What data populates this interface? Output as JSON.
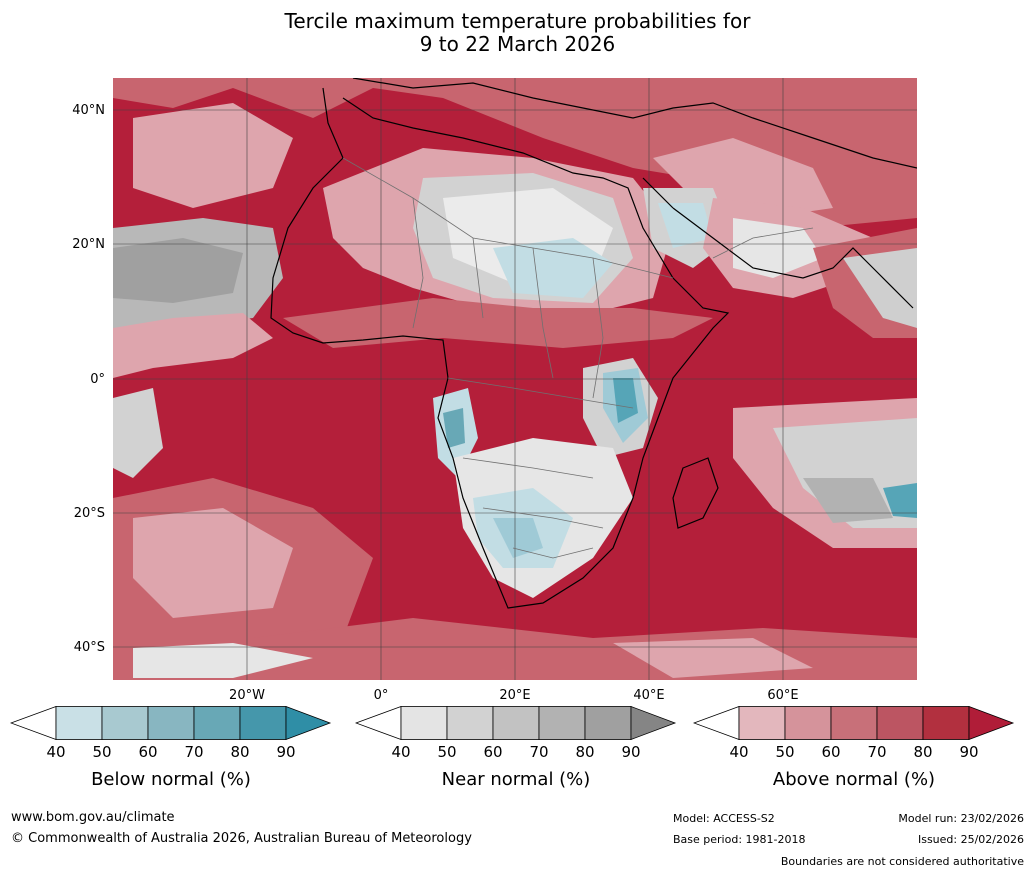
{
  "title_line1": "Tercile maximum temperature probabilities for",
  "title_line2": "9 to 22 March 2026",
  "lat_labels": [
    "40°N",
    "20°N",
    "0°",
    "20°S",
    "40°S"
  ],
  "lon_labels": [
    "20°W",
    "0°",
    "20°E",
    "40°E",
    "60°E"
  ],
  "colorbars": [
    {
      "label": "Below normal (%)",
      "ticks": [
        "40",
        "50",
        "60",
        "70",
        "80",
        "90"
      ],
      "colors": [
        "#ffffff",
        "#c9e0e6",
        "#a8c9d0",
        "#88b6c1",
        "#68a8b6",
        "#4597ab",
        "#2f8ea6"
      ]
    },
    {
      "label": "Near normal (%)",
      "ticks": [
        "40",
        "50",
        "60",
        "70",
        "80",
        "90"
      ],
      "colors": [
        "#ffffff",
        "#e4e4e4",
        "#d2d2d2",
        "#c2c2c2",
        "#b2b2b2",
        "#a0a0a0",
        "#858585"
      ]
    },
    {
      "label": "Above normal (%)",
      "ticks": [
        "40",
        "50",
        "60",
        "70",
        "80",
        "90"
      ],
      "colors": [
        "#ffffff",
        "#e3b7bd",
        "#d5939b",
        "#c87079",
        "#bc5562",
        "#b2303f",
        "#b01d38"
      ]
    }
  ],
  "footer": {
    "website": "www.bom.gov.au/climate",
    "copyright": "© Commonwealth of Australia 2026, Australian Bureau of Meteorology",
    "model": "Model: ACCESS-S2",
    "base_period": "Base period: 1981-2018",
    "model_run": "Model run: 23/02/2026",
    "issued": "Issued: 25/02/2026",
    "disclaimer": "Boundaries are not considered authoritative"
  },
  "map_colors": {
    "ocean_above": "#b41f3a",
    "above_mid": "#c8656f",
    "above_light": "#dea5ad",
    "near": "#cfcfcf",
    "near_light": "#e6e6e6",
    "below": "#9fcad6",
    "below_dark": "#56a5b7",
    "grid": "#404040",
    "coast": "#000000",
    "borders": "#707070"
  }
}
